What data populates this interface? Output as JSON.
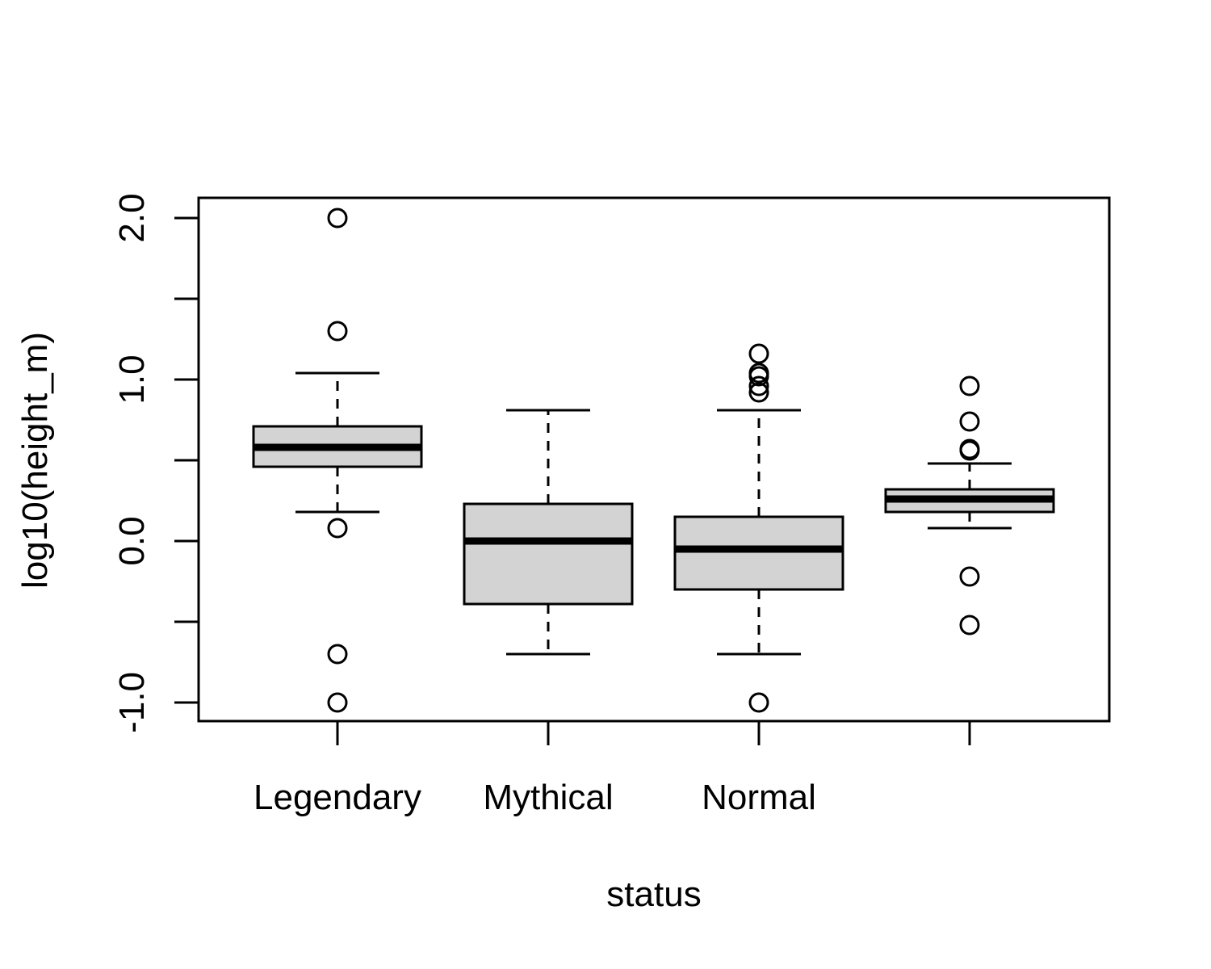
{
  "chart_data": {
    "type": "boxplot",
    "title": "",
    "xlabel": "status",
    "ylabel": "log10(height_m)",
    "ylim": [
      -1.12,
      2.12
    ],
    "yticks": [
      -1.0,
      -0.5,
      0.0,
      0.5,
      1.0,
      1.5,
      2.0
    ],
    "ytick_labels": [
      "-1.0",
      "",
      "0.0",
      "",
      "1.0",
      "",
      "2.0"
    ],
    "categories": [
      "Legendary",
      "Mythical",
      "Normal",
      ""
    ],
    "box_fill": "#d3d3d3",
    "boxes": [
      {
        "category": "Legendary",
        "whisker_low": 0.18,
        "q1": 0.46,
        "median": 0.58,
        "q3": 0.71,
        "whisker_high": 1.04,
        "outliers": [
          2.0,
          1.3,
          0.08,
          -0.7,
          -1.0
        ]
      },
      {
        "category": "Mythical",
        "whisker_low": -0.7,
        "q1": -0.39,
        "median": 0.0,
        "q3": 0.23,
        "whisker_high": 0.81,
        "outliers": []
      },
      {
        "category": "Normal",
        "whisker_low": -0.7,
        "q1": -0.3,
        "median": -0.05,
        "q3": 0.15,
        "whisker_high": 0.81,
        "outliers": [
          1.16,
          1.04,
          1.02,
          0.96,
          0.92,
          -1.0
        ]
      },
      {
        "category": "",
        "whisker_low": 0.08,
        "q1": 0.18,
        "median": 0.26,
        "q3": 0.32,
        "whisker_high": 0.48,
        "outliers": [
          0.96,
          0.74,
          0.57,
          0.56,
          -0.22,
          -0.52
        ]
      }
    ]
  }
}
